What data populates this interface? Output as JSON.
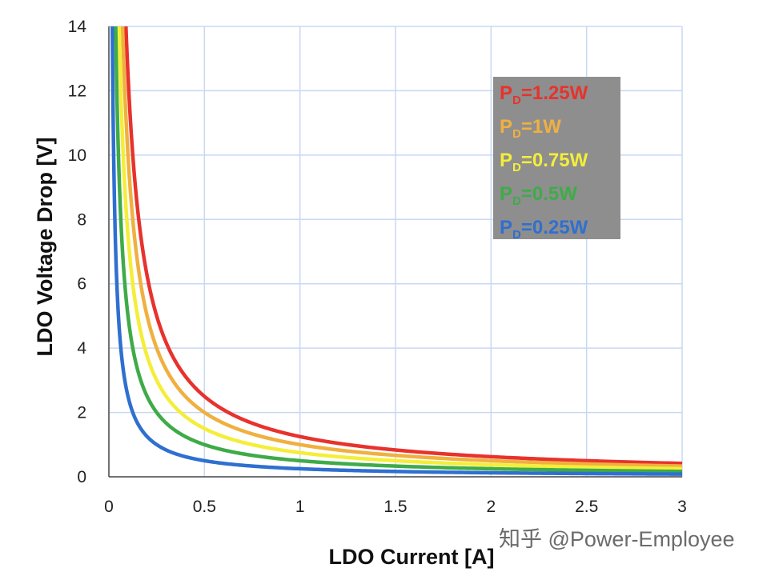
{
  "chart_data": {
    "type": "line",
    "title": "",
    "xlabel": "LDO Current [A]",
    "ylabel": "LDO Voltage Drop [V]",
    "xlim": [
      0,
      3
    ],
    "ylim": [
      0,
      14
    ],
    "xticks": [
      0,
      0.5,
      1,
      1.5,
      2,
      2.5,
      3
    ],
    "xtick_labels": [
      "0",
      "0.5",
      "1",
      "1.5",
      "2",
      "2.5",
      "3"
    ],
    "yticks": [
      0,
      2,
      4,
      6,
      8,
      10,
      12,
      14
    ],
    "ytick_labels": [
      "0",
      "2",
      "4",
      "6",
      "8",
      "10",
      "12",
      "14"
    ],
    "grid": true,
    "legend_position": "top-right",
    "series": [
      {
        "name": "PD=1.25W",
        "prefix": "P",
        "sub": "D",
        "suffix": "=1.25W",
        "power_w": 1.25,
        "color": "#e8322c",
        "formula": "V = P / I"
      },
      {
        "name": "PD=1W",
        "prefix": "P",
        "sub": "D",
        "suffix": "=1W",
        "power_w": 1.0,
        "color": "#f0b040",
        "formula": "V = P / I"
      },
      {
        "name": "PD=0.75W",
        "prefix": "P",
        "sub": "D",
        "suffix": "=0.75W",
        "power_w": 0.75,
        "color": "#f4ee3a",
        "formula": "V = P / I"
      },
      {
        "name": "PD=0.5W",
        "prefix": "P",
        "sub": "D",
        "suffix": "=0.5W",
        "power_w": 0.5,
        "color": "#3eab48",
        "formula": "V = P / I"
      },
      {
        "name": "PD=0.25W",
        "prefix": "P",
        "sub": "D",
        "suffix": "=0.25W",
        "power_w": 0.25,
        "color": "#2f6fd0",
        "formula": "V = P / I"
      }
    ]
  },
  "colors": {
    "grid": "#c8d8f2",
    "axis": "#4a4a4a",
    "legend_bg": "#8e8e8e"
  },
  "watermark": "知乎 @Power-Employee"
}
